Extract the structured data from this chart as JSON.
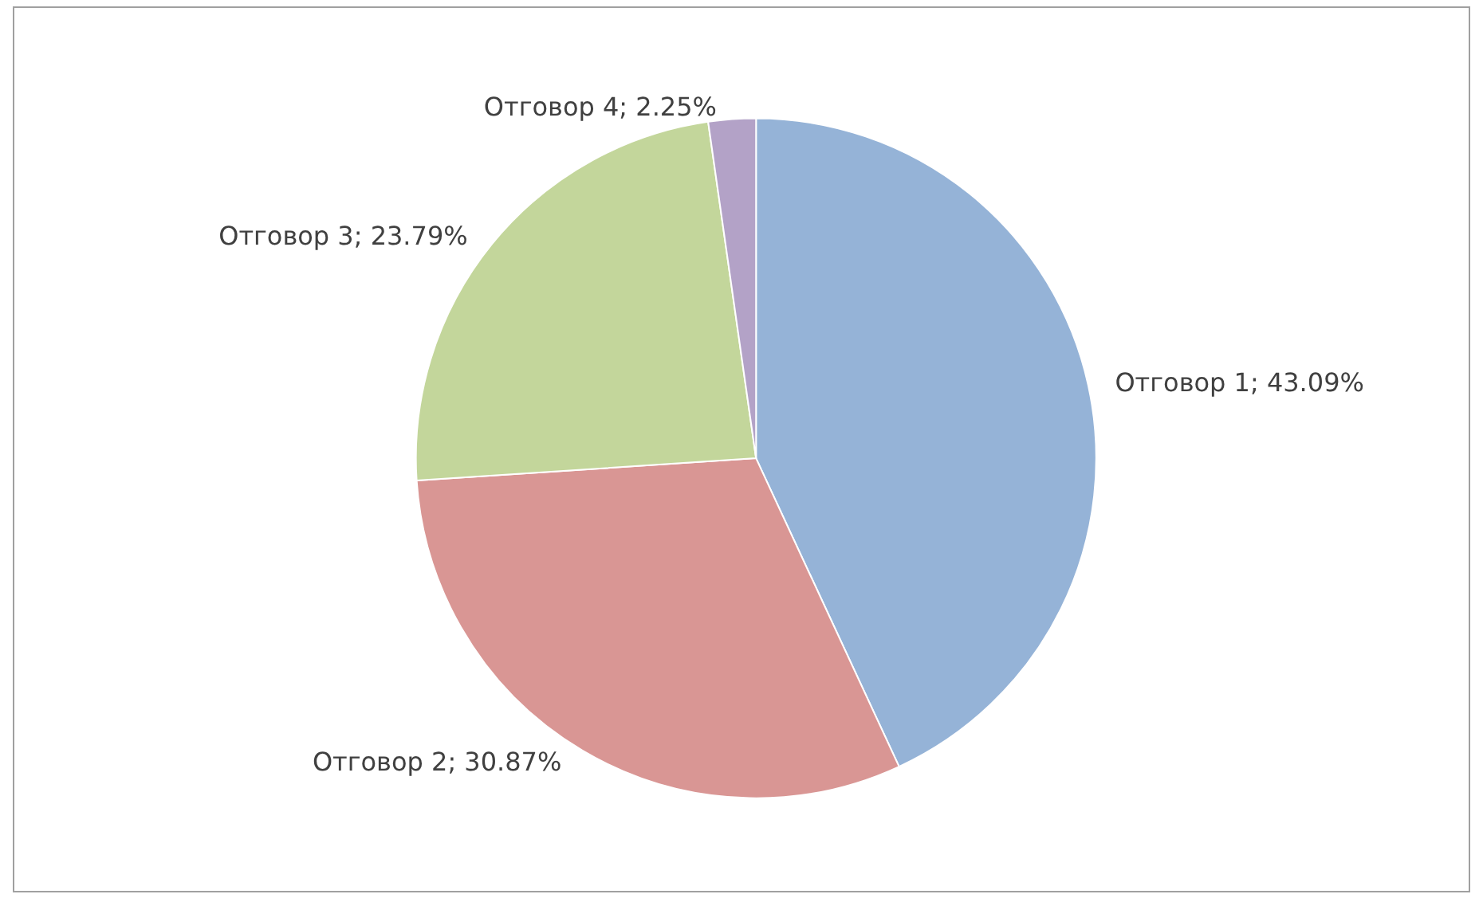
{
  "chart_data": {
    "type": "pie",
    "categories": [
      "Отговор 1",
      "Отговор 2",
      "Отговор 3",
      "Отговор 4"
    ],
    "values": [
      43.09,
      30.87,
      23.79,
      2.25
    ],
    "colors": [
      "#95b3d7",
      "#d99694",
      "#c3d69b",
      "#b3a2c7"
    ],
    "value_labels": [
      "43.09%",
      "30.87%",
      "23.79%",
      "2.25%"
    ],
    "legend": false
  }
}
